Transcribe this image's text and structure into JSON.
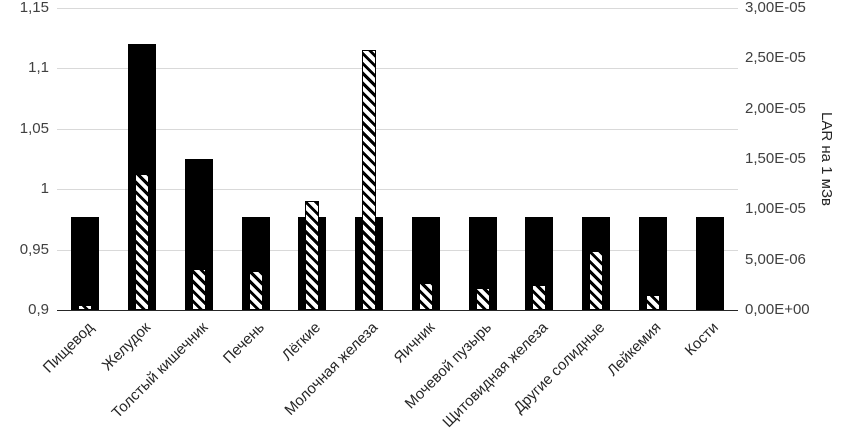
{
  "chart_data": {
    "type": "bar",
    "title": "",
    "categories": [
      "Пищевод",
      "Желудок",
      "Толстый кишечник",
      "Печень",
      "Лёгкие",
      "Молочная железа",
      "Яичник",
      "Мочевой пузырь",
      "Щитовидная железа",
      "Другие солидные",
      "Лейкемия",
      "Кости"
    ],
    "series": [
      {
        "name": "solid-black-ratio",
        "axis": "left",
        "values": [
          0.977,
          1.12,
          1.025,
          0.977,
          0.977,
          0.977,
          0.977,
          0.977,
          0.977,
          0.977,
          0.977,
          0.977
        ]
      },
      {
        "name": "hatched-LAR",
        "axis": "right",
        "values": [
          5e-07,
          1.35e-05,
          4.1e-06,
          3.9e-06,
          1.08e-05,
          2.58e-05,
          2.7e-06,
          2.2e-06,
          2.5e-06,
          5.9e-06,
          1.5e-06,
          0
        ]
      }
    ],
    "left_axis": {
      "min": 0.9,
      "max": 1.15,
      "ticks": [
        "1,15",
        "1,1",
        "1,05",
        "1",
        "0,95",
        "0,9"
      ]
    },
    "right_axis": {
      "min": 0,
      "max": 3e-05,
      "ticks": [
        "3,00E-05",
        "2,50E-05",
        "2,00E-05",
        "1,50E-05",
        "1,00E-05",
        "5,00E-06",
        "0,00E+00"
      ],
      "label": "LAR на 1 мЗв"
    },
    "grid": "horizontal",
    "legend": "none",
    "colors": {
      "solid_bar": "#000000",
      "hatch_stroke": "#000000",
      "gridline": "#d9d9d9",
      "axis_line": "#262626"
    }
  }
}
